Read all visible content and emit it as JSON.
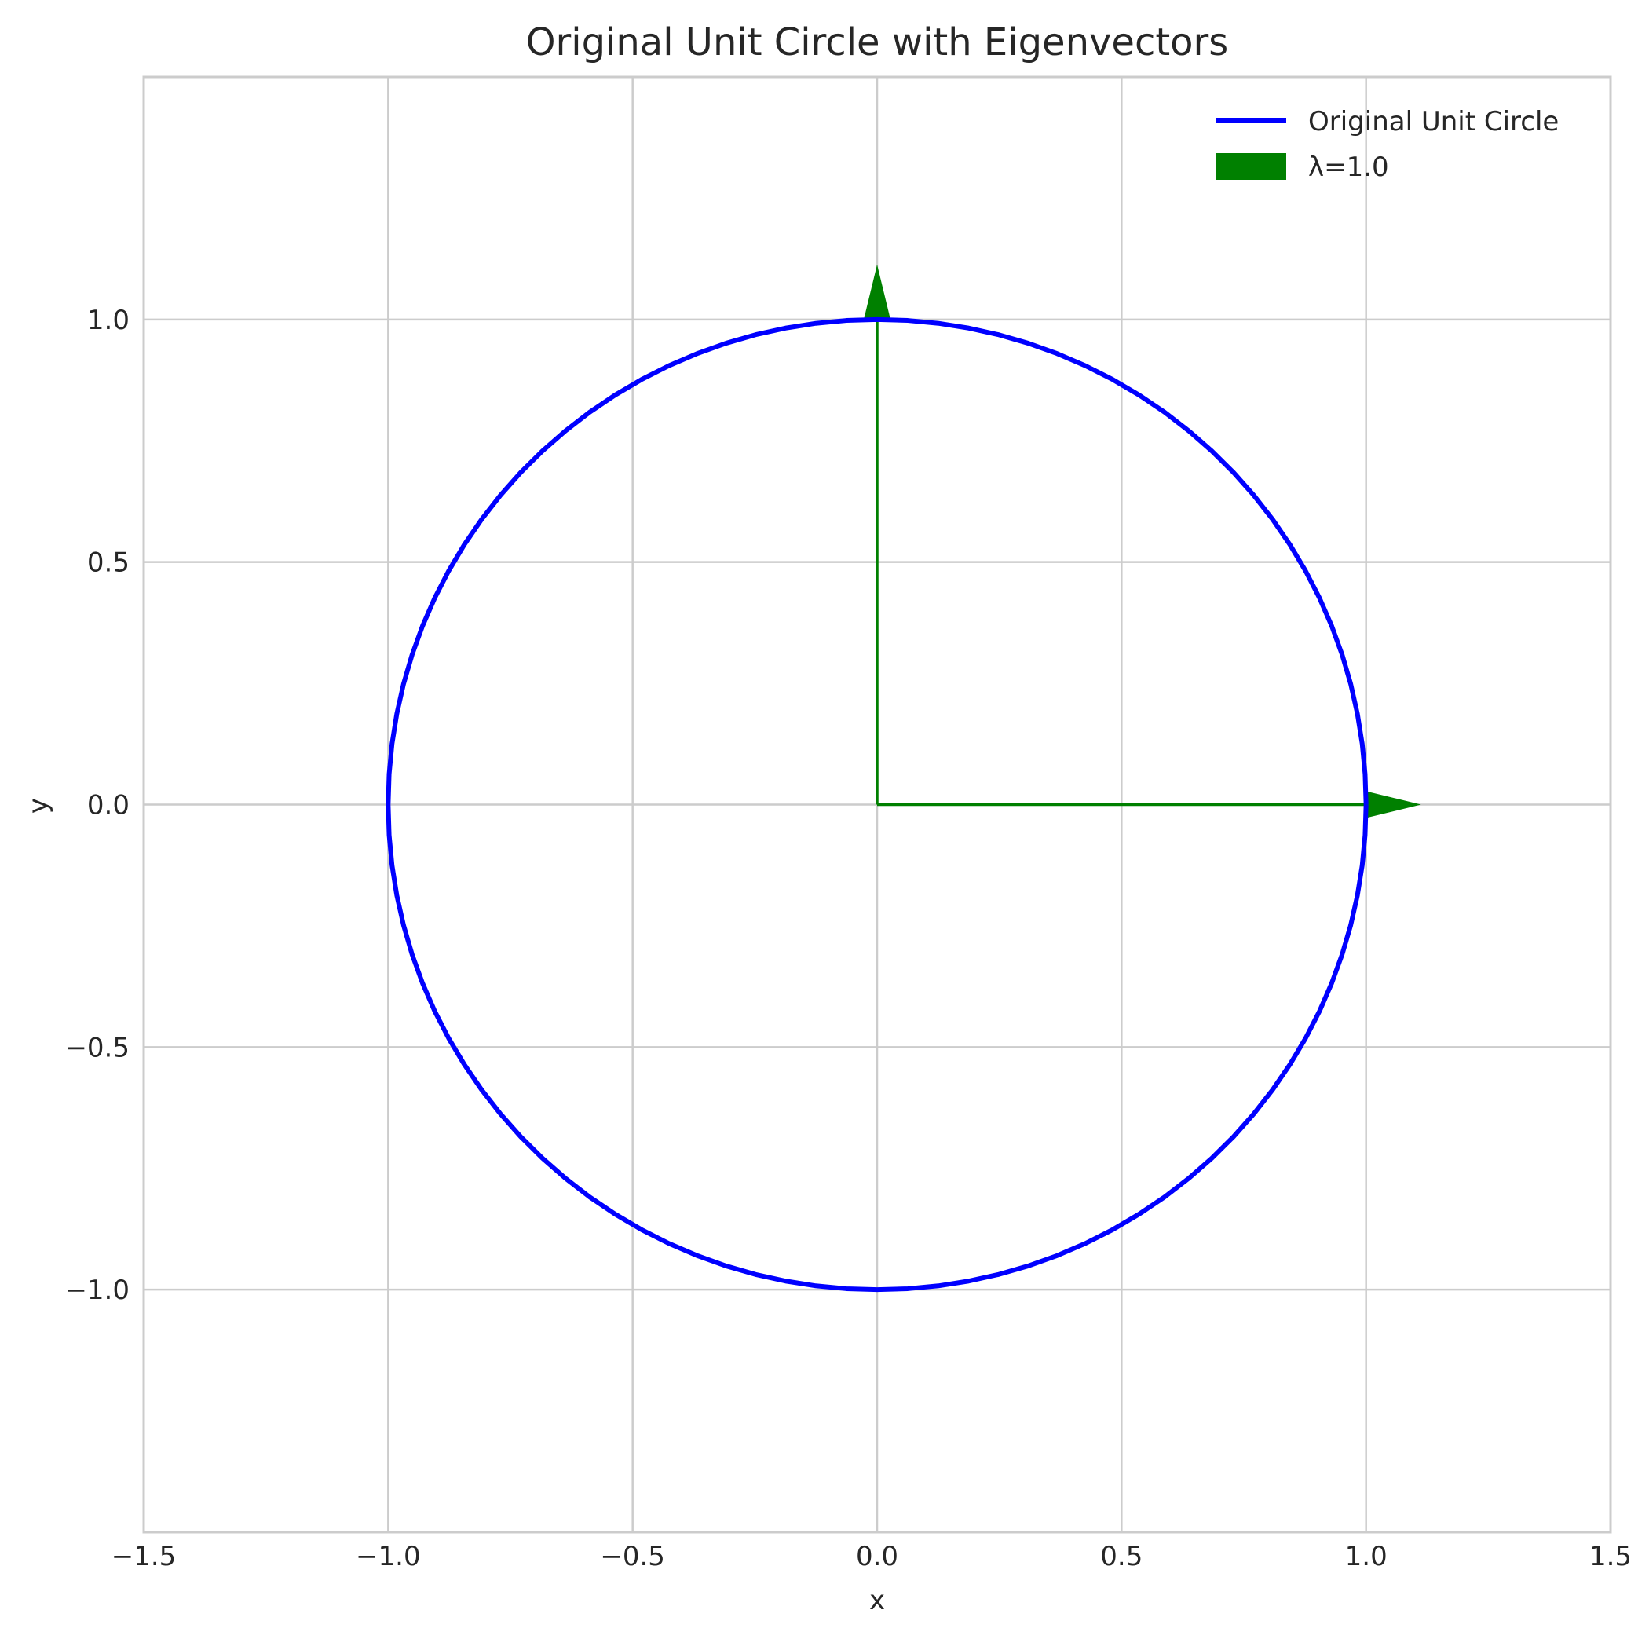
{
  "chart_data": {
    "type": "line",
    "title": "Original Unit Circle with Eigenvectors",
    "xlabel": "x",
    "ylabel": "y",
    "xlim": [
      -1.5,
      1.5
    ],
    "ylim": [
      -1.5,
      1.5
    ],
    "xticks": [
      -1.5,
      -1.0,
      -0.5,
      0.0,
      0.5,
      1.0,
      1.5
    ],
    "xtick_labels": [
      "−1.5",
      "−1.0",
      "−0.5",
      "0.0",
      "0.5",
      "1.0",
      "1.5"
    ],
    "yticks": [
      -1.0,
      -0.5,
      0.0,
      0.5,
      1.0
    ],
    "ytick_labels": [
      "−1.0",
      "−0.5",
      "0.0",
      "0.5",
      "1.0"
    ],
    "grid": true,
    "legend_position": "top-right",
    "series": [
      {
        "name": "Original Unit Circle",
        "kind": "circle",
        "center": [
          0,
          0
        ],
        "radius": 1.0,
        "color": "#0000ff"
      }
    ],
    "eigenvectors": {
      "name": "λ=1.0",
      "color": "#008000",
      "eigenvalue": 1.0,
      "vectors": [
        {
          "origin": [
            0,
            0
          ],
          "direction": [
            1,
            0
          ]
        },
        {
          "origin": [
            0,
            0
          ],
          "direction": [
            0,
            1
          ]
        }
      ]
    }
  }
}
